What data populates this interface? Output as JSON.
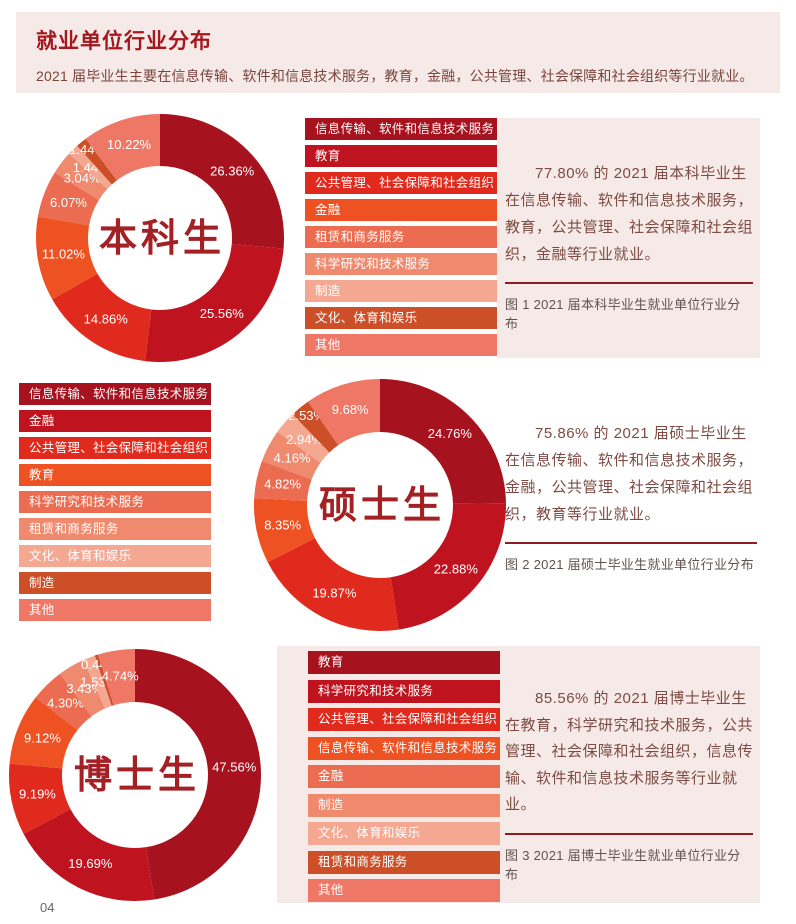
{
  "header": {
    "title": "就业单位行业分布",
    "subtitle": "2021 届毕业生主要在信息传输、软件和信息技术服务，教育，金融，公共管理、社会保障和社会组织等行业就业。"
  },
  "page_number": "04",
  "colors": {
    "panel_pink": "#f5eae7",
    "title_red": "#a5171f",
    "center_label_red": "#a32024",
    "divider_red": "#8e1c22",
    "paragraph_text": "#7d4b43",
    "caption_text": "#5e534e",
    "palette": [
      "#a6121e",
      "#bf141f",
      "#e02a1d",
      "#ef5222",
      "#eb6c50",
      "#f08a6e",
      "#f4a892",
      "#cd4f28",
      "#ee7766"
    ]
  },
  "chart_data": [
    {
      "type": "pie",
      "subtype": "donut",
      "title": "本科生",
      "legend_position": "right",
      "labels": [
        "信息传输、软件和信息技术服务",
        "教育",
        "公共管理、社会保障和社会组织",
        "金融",
        "租赁和商务服务",
        "科学研究和技术服务",
        "制造",
        "文化、体育和娱乐",
        "其他"
      ],
      "values": [
        26.36,
        25.56,
        14.86,
        11.02,
        6.07,
        3.04,
        1.44,
        1.44,
        10.22
      ],
      "description": "77.80% 的 2021 届本科毕业生在信息传输、软件和信息技术服务，教育，公共管理、社会保障和社会组织，金融等行业就业。",
      "caption": "图 1 2021 届本科毕业生就业单位行业分布"
    },
    {
      "type": "pie",
      "subtype": "donut",
      "title": "硕士生",
      "legend_position": "left",
      "labels": [
        "信息传输、软件和信息技术服务",
        "金融",
        "公共管理、社会保障和社会组织",
        "教育",
        "科学研究和技术服务",
        "租赁和商务服务",
        "文化、体育和娱乐",
        "制造",
        "其他"
      ],
      "values": [
        24.76,
        22.88,
        19.87,
        8.35,
        4.82,
        4.16,
        2.94,
        2.53,
        9.68
      ],
      "description": "75.86% 的 2021 届硕士毕业生在信息传输、软件和信息技术服务，金融，公共管理、社会保障和社会组织，教育等行业就业。",
      "caption": "图 2 2021 届硕士毕业生就业单位行业分布"
    },
    {
      "type": "pie",
      "subtype": "donut",
      "title": "博士生",
      "legend_position": "right",
      "labels": [
        "教育",
        "科学研究和技术服务",
        "公共管理、社会保障和社会组织",
        "信息传输、软件和信息技术服务",
        "金融",
        "制造",
        "文化、体育和娱乐",
        "租赁和商务服务",
        "其他"
      ],
      "values": [
        47.56,
        19.69,
        9.19,
        9.12,
        4.3,
        3.43,
        1.53,
        0.44,
        4.74
      ],
      "description": "85.56% 的 2021 届博士毕业生在教育，科学研究和技术服务，公共管理、社会保障和社会组织，信息传输、软件和信息技术服务等行业就业。",
      "caption": "图 3 2021 届博士毕业生就业单位行业分布"
    }
  ]
}
